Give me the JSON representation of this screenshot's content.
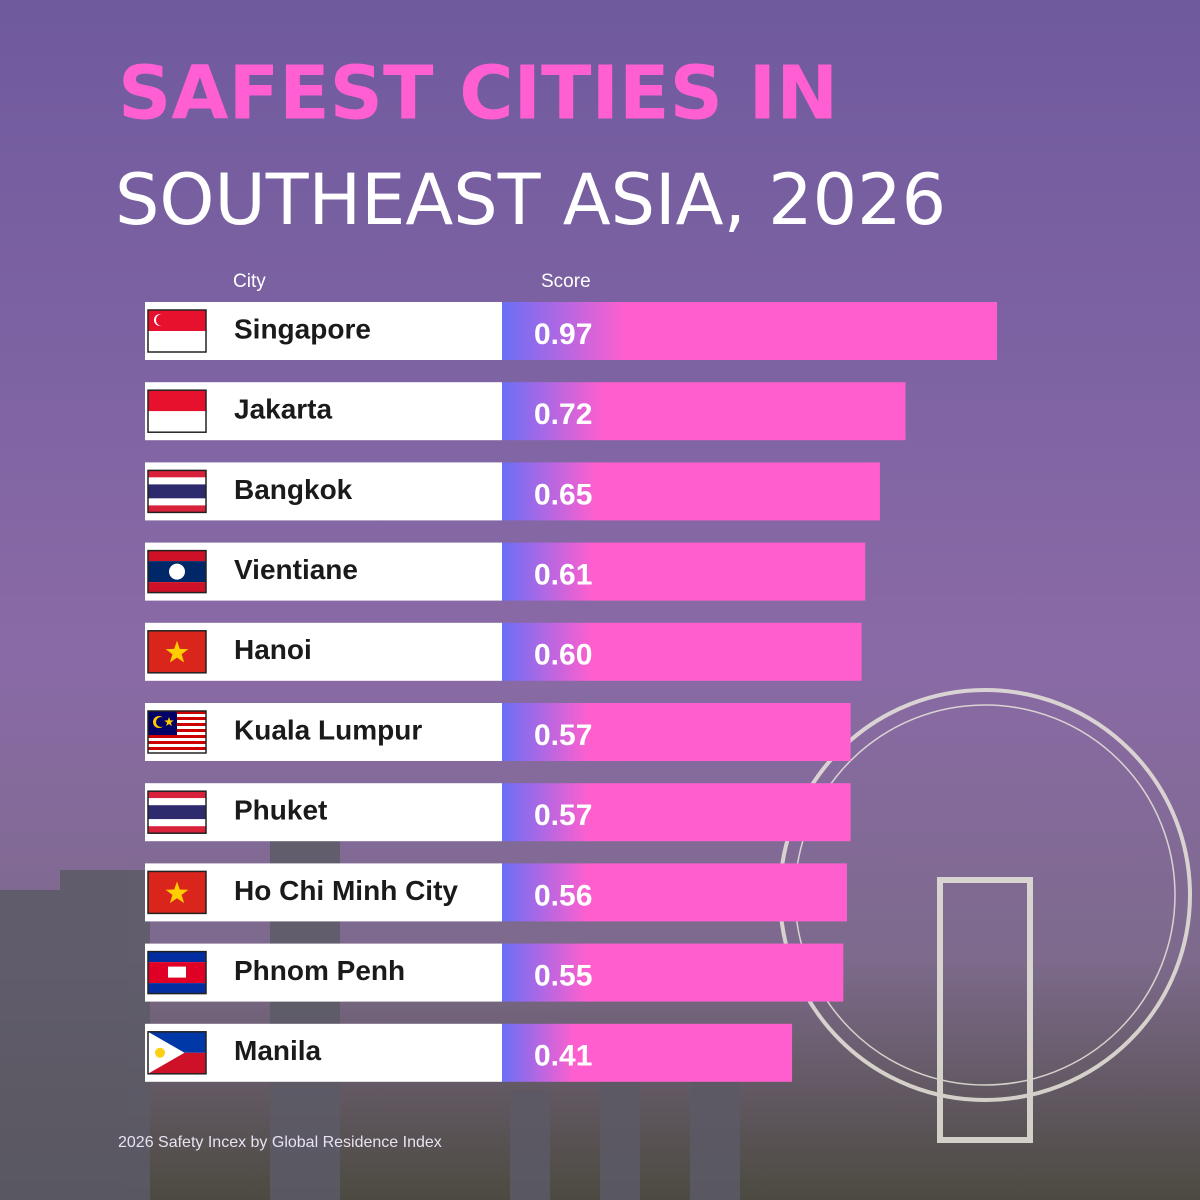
{
  "chart_data": {
    "type": "bar",
    "title": "SAFEST CITIES IN",
    "subtitle": "SOUTHEAST ASIA, 2026",
    "category_header": "City",
    "value_header": "Score",
    "categories": [
      "Singapore",
      "Jakarta",
      "Bangkok",
      "Vientiane",
      "Hanoi",
      "Kuala Lumpur",
      "Phuket",
      "Ho Chi Minh City",
      "Phnom Penh",
      "Manila"
    ],
    "values": [
      0.97,
      0.72,
      0.65,
      0.61,
      0.6,
      0.57,
      0.57,
      0.56,
      0.55,
      0.41
    ],
    "value_labels": [
      "0.97",
      "0.72",
      "0.65",
      "0.61",
      "0.60",
      "0.57",
      "0.57",
      "0.56",
      "0.55",
      "0.41"
    ],
    "color": "#ff5fce",
    "source": "2026 Safety Incex by Global Residence Index"
  }
}
